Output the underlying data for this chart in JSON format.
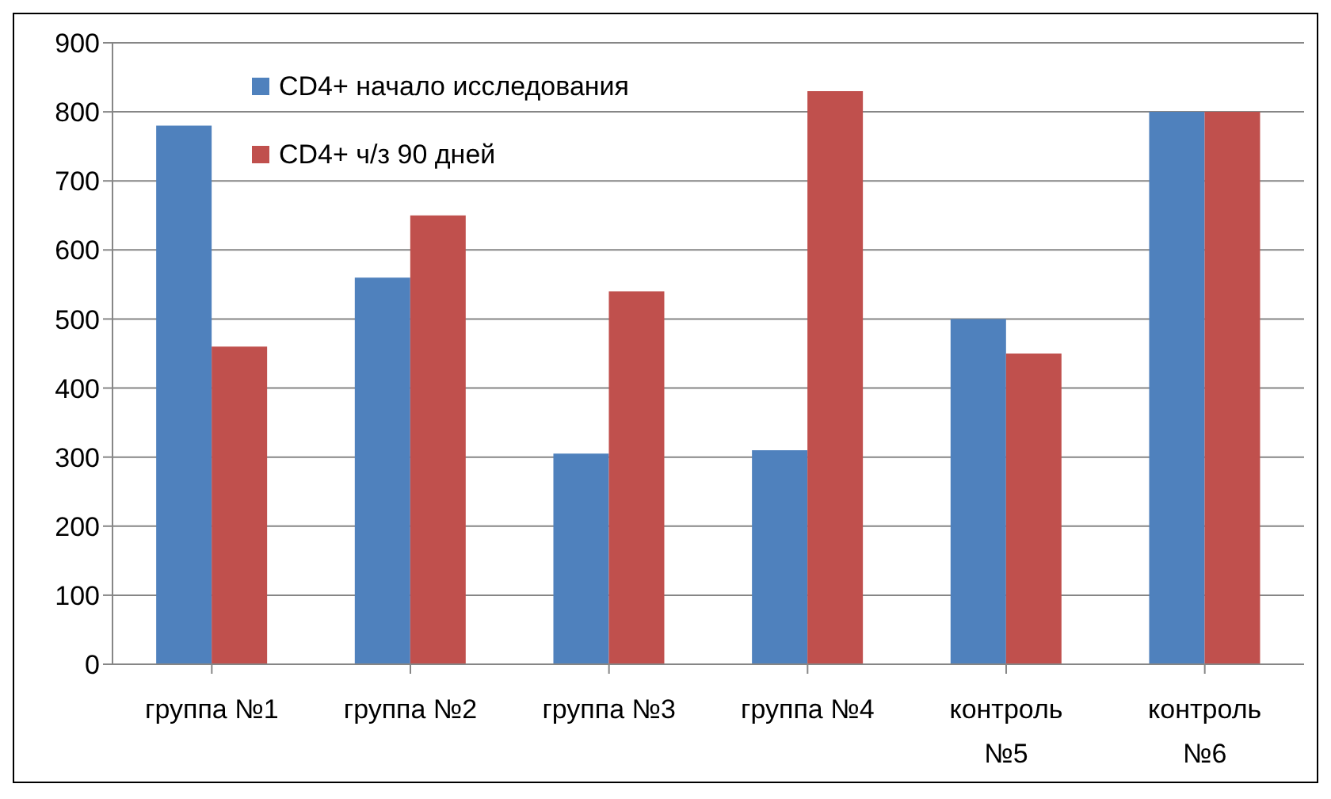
{
  "chart_data": {
    "type": "bar",
    "categories": [
      "группа №1",
      "группа №2",
      "группа №3",
      "группа №4",
      "контроль №5",
      "контроль №6"
    ],
    "series": [
      {
        "name": "CD4+ начало исследования",
        "color": "#4f81bd",
        "values": [
          780,
          560,
          305,
          310,
          500,
          800
        ]
      },
      {
        "name": "CD4+ ч/з 90 дней",
        "color": "#c0504d",
        "values": [
          460,
          650,
          540,
          830,
          450,
          800
        ]
      }
    ],
    "ylim": [
      0,
      900
    ],
    "yticks": [
      0,
      100,
      200,
      300,
      400,
      500,
      600,
      700,
      800,
      900
    ],
    "grid": "y",
    "legend": "top left"
  }
}
